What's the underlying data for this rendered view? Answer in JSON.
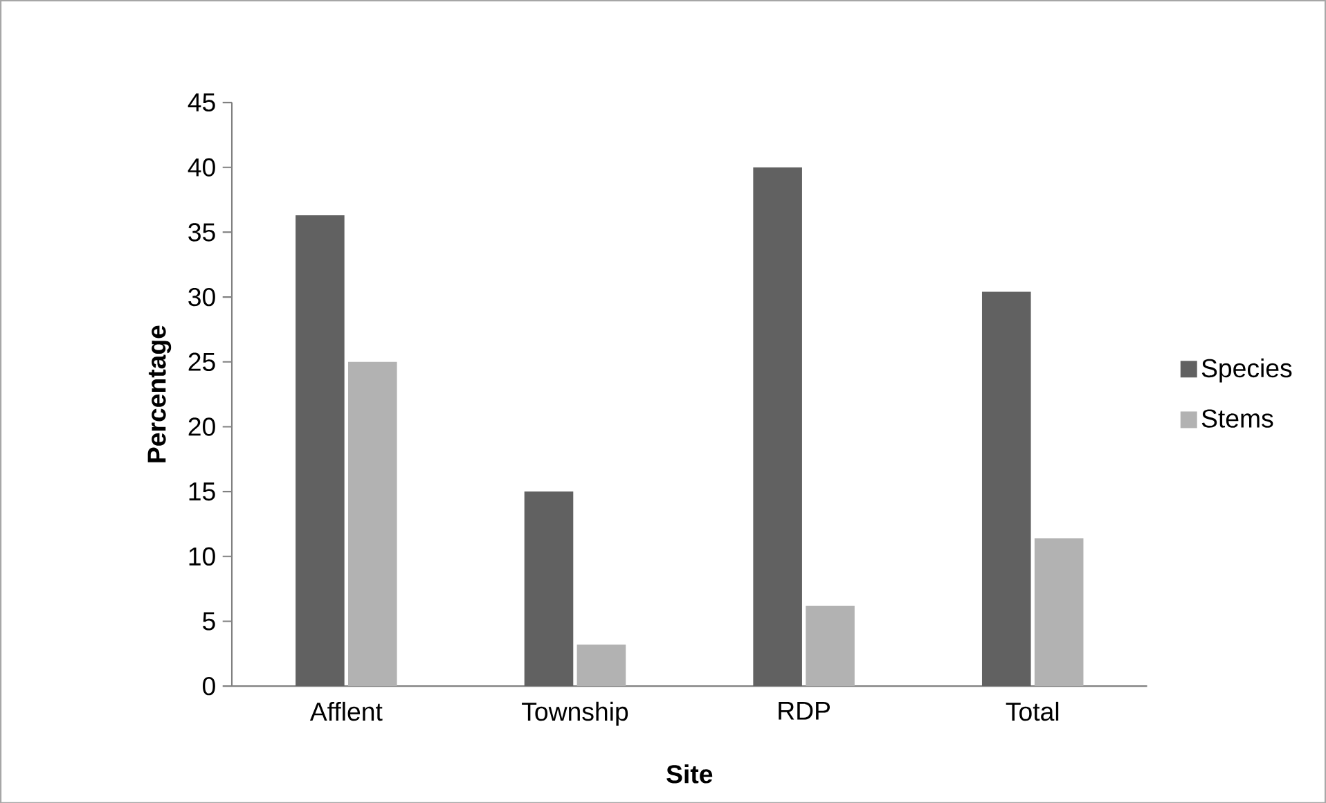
{
  "chart_data": {
    "type": "bar",
    "xlabel": "Site",
    "ylabel": "Percentage",
    "categories": [
      "Afflent",
      "Township",
      "RDP",
      "Total"
    ],
    "series": [
      {
        "name": "Species",
        "color": "#616161",
        "values": [
          36.3,
          15,
          40,
          30.4
        ]
      },
      {
        "name": "Stems",
        "color": "#b2b2b2",
        "values": [
          25,
          3.2,
          6.2,
          11.4
        ]
      }
    ],
    "ylim": [
      0,
      45
    ],
    "yticks": [
      0,
      5,
      10,
      15,
      20,
      25,
      30,
      35,
      40,
      45
    ],
    "grid": false,
    "legend": "right"
  }
}
